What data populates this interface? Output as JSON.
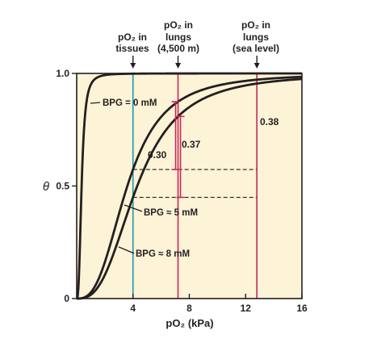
{
  "chart_data": {
    "type": "line",
    "title": "",
    "xlabel": "pO₂ (kPa)",
    "ylabel": "θ",
    "xlim": [
      0,
      16
    ],
    "ylim": [
      0,
      1.0
    ],
    "x_ticks": [
      "4",
      "8",
      "12",
      "16"
    ],
    "y_ticks": [
      "0",
      "0.5",
      "1.0"
    ],
    "grid": false,
    "legend": "none",
    "series": [
      {
        "name": "BPG = 0 mM",
        "p50": 0.35,
        "hill": 2.8,
        "x": [
          0,
          0.25,
          0.5,
          1,
          2,
          4,
          8,
          16
        ],
        "values": [
          0,
          0.27,
          0.73,
          0.95,
          0.99,
          1.0,
          1.0,
          1.0
        ]
      },
      {
        "name": "BPG ≈ 5 mM",
        "p50": 3.6,
        "hill": 2.8,
        "x": [
          0,
          1,
          2,
          3,
          4,
          6,
          8,
          12,
          16
        ],
        "values": [
          0,
          0.03,
          0.16,
          0.38,
          0.57,
          0.82,
          0.91,
          0.97,
          0.99
        ]
      },
      {
        "name": "BPG ≈ 8 mM",
        "p50": 4.3,
        "hill": 2.8,
        "x": [
          0,
          1,
          2,
          3,
          4,
          6,
          8,
          12,
          16
        ],
        "values": [
          0,
          0.02,
          0.1,
          0.27,
          0.45,
          0.72,
          0.85,
          0.95,
          0.98
        ]
      }
    ],
    "reference_lines": [
      {
        "x": 4,
        "label": "pO₂ in tissues",
        "color": "#1a9bb0"
      },
      {
        "x": 7.2,
        "label": "pO₂ in lungs (4,500 m)",
        "color": "#c8285a"
      },
      {
        "x": 12.8,
        "label": "pO₂ in lungs (sea level)",
        "color": "#c8285a"
      }
    ],
    "annotations": {
      "diff_sea_level": "0.38",
      "diff_high_5mM": "0.37",
      "diff_high_8mM": "0.30"
    },
    "colors": {
      "background": "#fdf3d6",
      "curve": "#231f20",
      "tissue_line": "#1a9bb0",
      "lung_line": "#c8285a"
    }
  }
}
